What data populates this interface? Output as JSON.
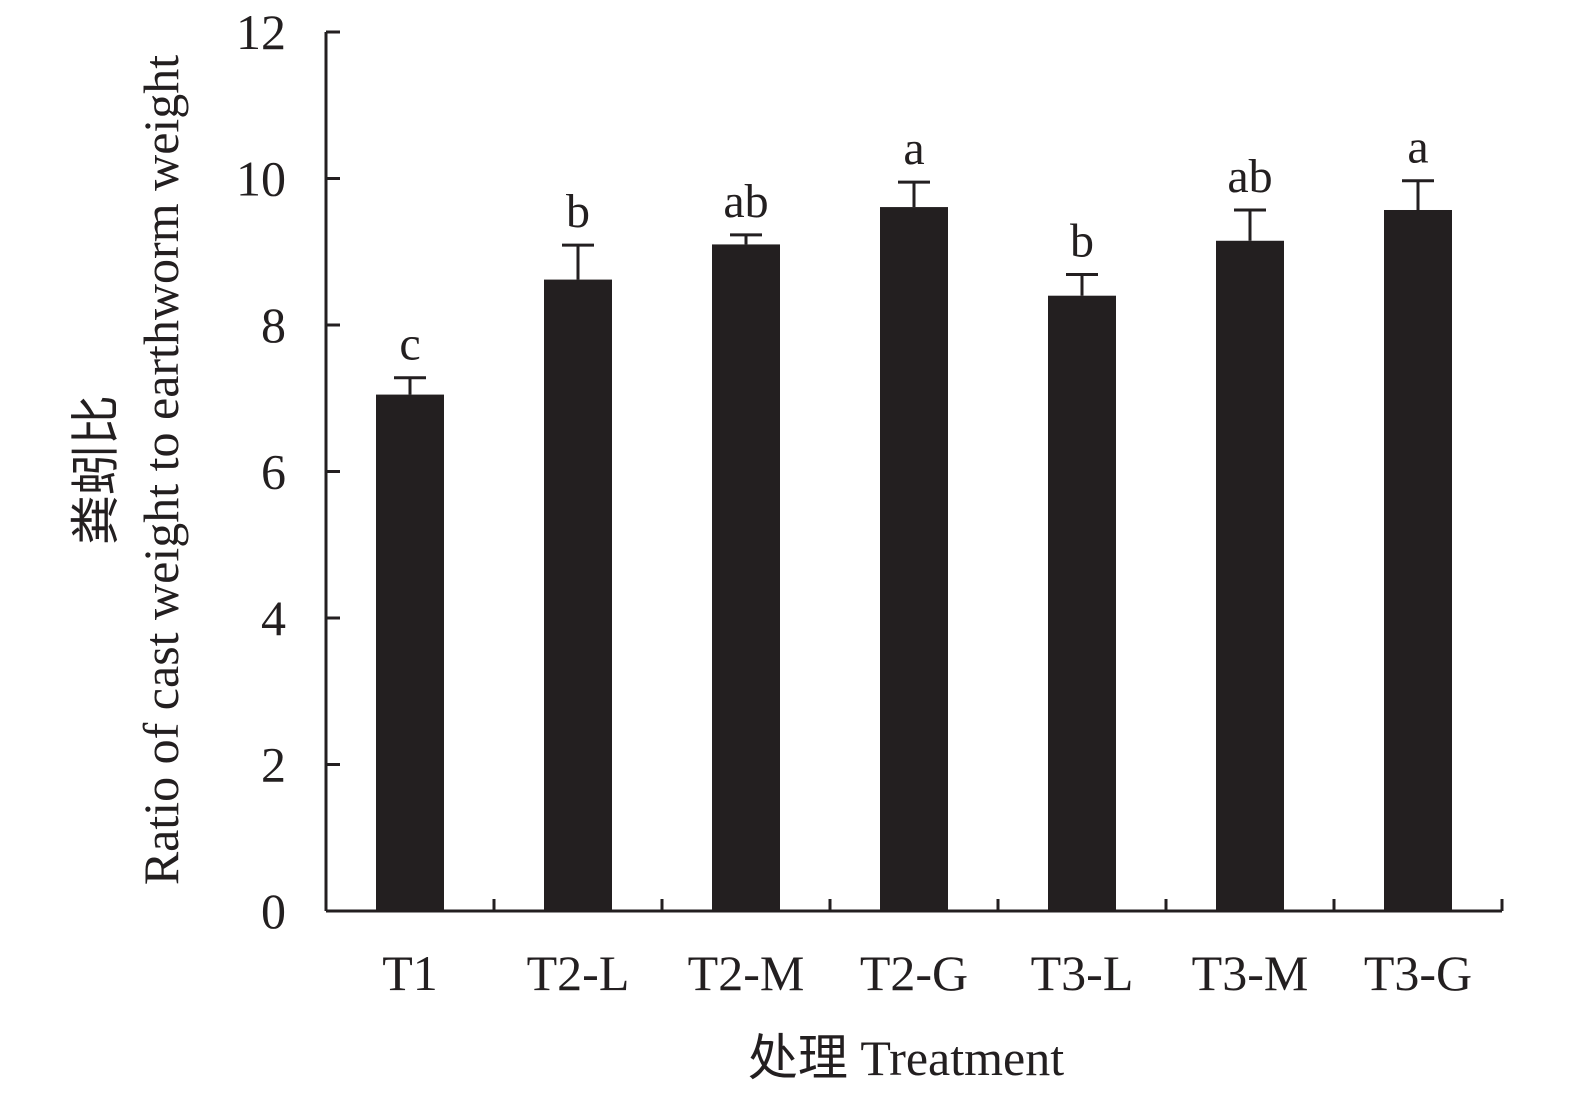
{
  "chart_data": {
    "type": "bar",
    "xlabel": "处理 Treatment",
    "ylabel_cn": "粪蚓比",
    "ylabel_en": "Ratio of cast weight to earthworm weight",
    "ylim": [
      0,
      12
    ],
    "yticks": [
      0,
      2,
      4,
      6,
      8,
      10,
      12
    ],
    "grid": false,
    "categories": [
      "T1",
      "T2-L",
      "T2-M",
      "T2-G",
      "T3-L",
      "T3-M",
      "T3-G"
    ],
    "series": [
      {
        "values": [
          7.05,
          8.62,
          9.1,
          9.61,
          8.4,
          9.15,
          9.57
        ],
        "errors": [
          0.23,
          0.47,
          0.13,
          0.34,
          0.29,
          0.42,
          0.4
        ],
        "significance": [
          "c",
          "b",
          "ab",
          "a",
          "b",
          "ab",
          "a"
        ]
      }
    ],
    "colors": {
      "bar": "#231f20",
      "axis": "#231f20",
      "background": "#ffffff"
    }
  }
}
